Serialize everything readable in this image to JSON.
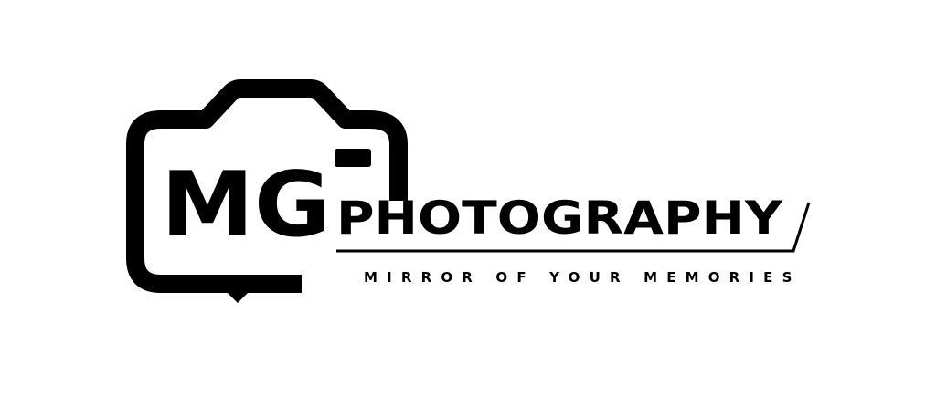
{
  "logo": {
    "monogram": "MG",
    "brand_word": "PHOTOGRAPHY",
    "tagline": "MIRROR OF YOUR MEMORIES",
    "ink_color": "#000000",
    "background_color": "#ffffff",
    "icon": "camera-outline-icon"
  }
}
